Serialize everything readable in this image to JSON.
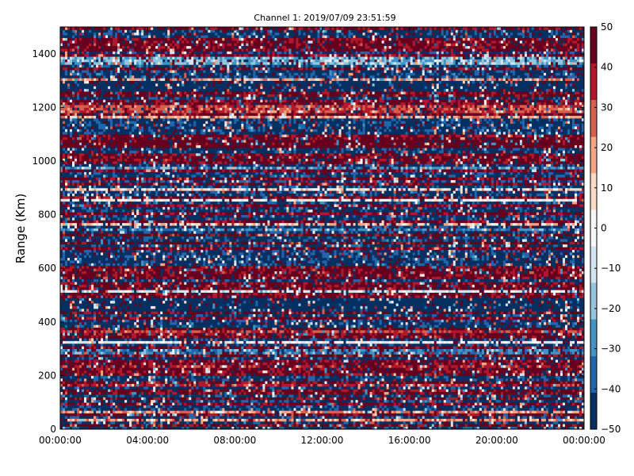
{
  "chart_data": {
    "type": "heatmap",
    "title": "Channel 1: 2019/07/09 23:51:59",
    "xlabel": "",
    "ylabel": "Range (Km)",
    "x_tick_labels": [
      "00:00:00",
      "04:00:00",
      "08:00:00",
      "12:00:00",
      "16:00:00",
      "20:00:00",
      "00:00:00"
    ],
    "x_range_hours": [
      0,
      24
    ],
    "y_ticks": [
      0,
      200,
      400,
      600,
      800,
      1000,
      1200,
      1400
    ],
    "ylim": [
      0,
      1500
    ],
    "colorbar": {
      "ticks": [
        50,
        40,
        30,
        20,
        10,
        0,
        -10,
        -20,
        -30,
        -40,
        -50
      ],
      "range": [
        -50,
        50
      ],
      "colormap": "RdBu_r",
      "colors": [
        "#053061",
        "#2166ac",
        "#4393c3",
        "#92c5de",
        "#d1e5f0",
        "#f7f7f7",
        "#fddbc7",
        "#f4a582",
        "#d6604d",
        "#b2182b",
        "#67001f"
      ]
    },
    "range_bins_km": 150,
    "time_bins": 220,
    "dominant_bands": [
      {
        "range_km": [
          440,
          490
        ],
        "value": -50
      },
      {
        "range_km": [
          1260,
          1300
        ],
        "value": -50
      },
      {
        "range_km": [
          1180,
          1210
        ],
        "value": 30
      },
      {
        "range_km": [
          1050,
          1080
        ],
        "value": 50
      },
      {
        "range_km": [
          280,
          300
        ],
        "value": -30
      },
      {
        "range_km": [
          1360,
          1390
        ],
        "value": -20
      }
    ]
  }
}
